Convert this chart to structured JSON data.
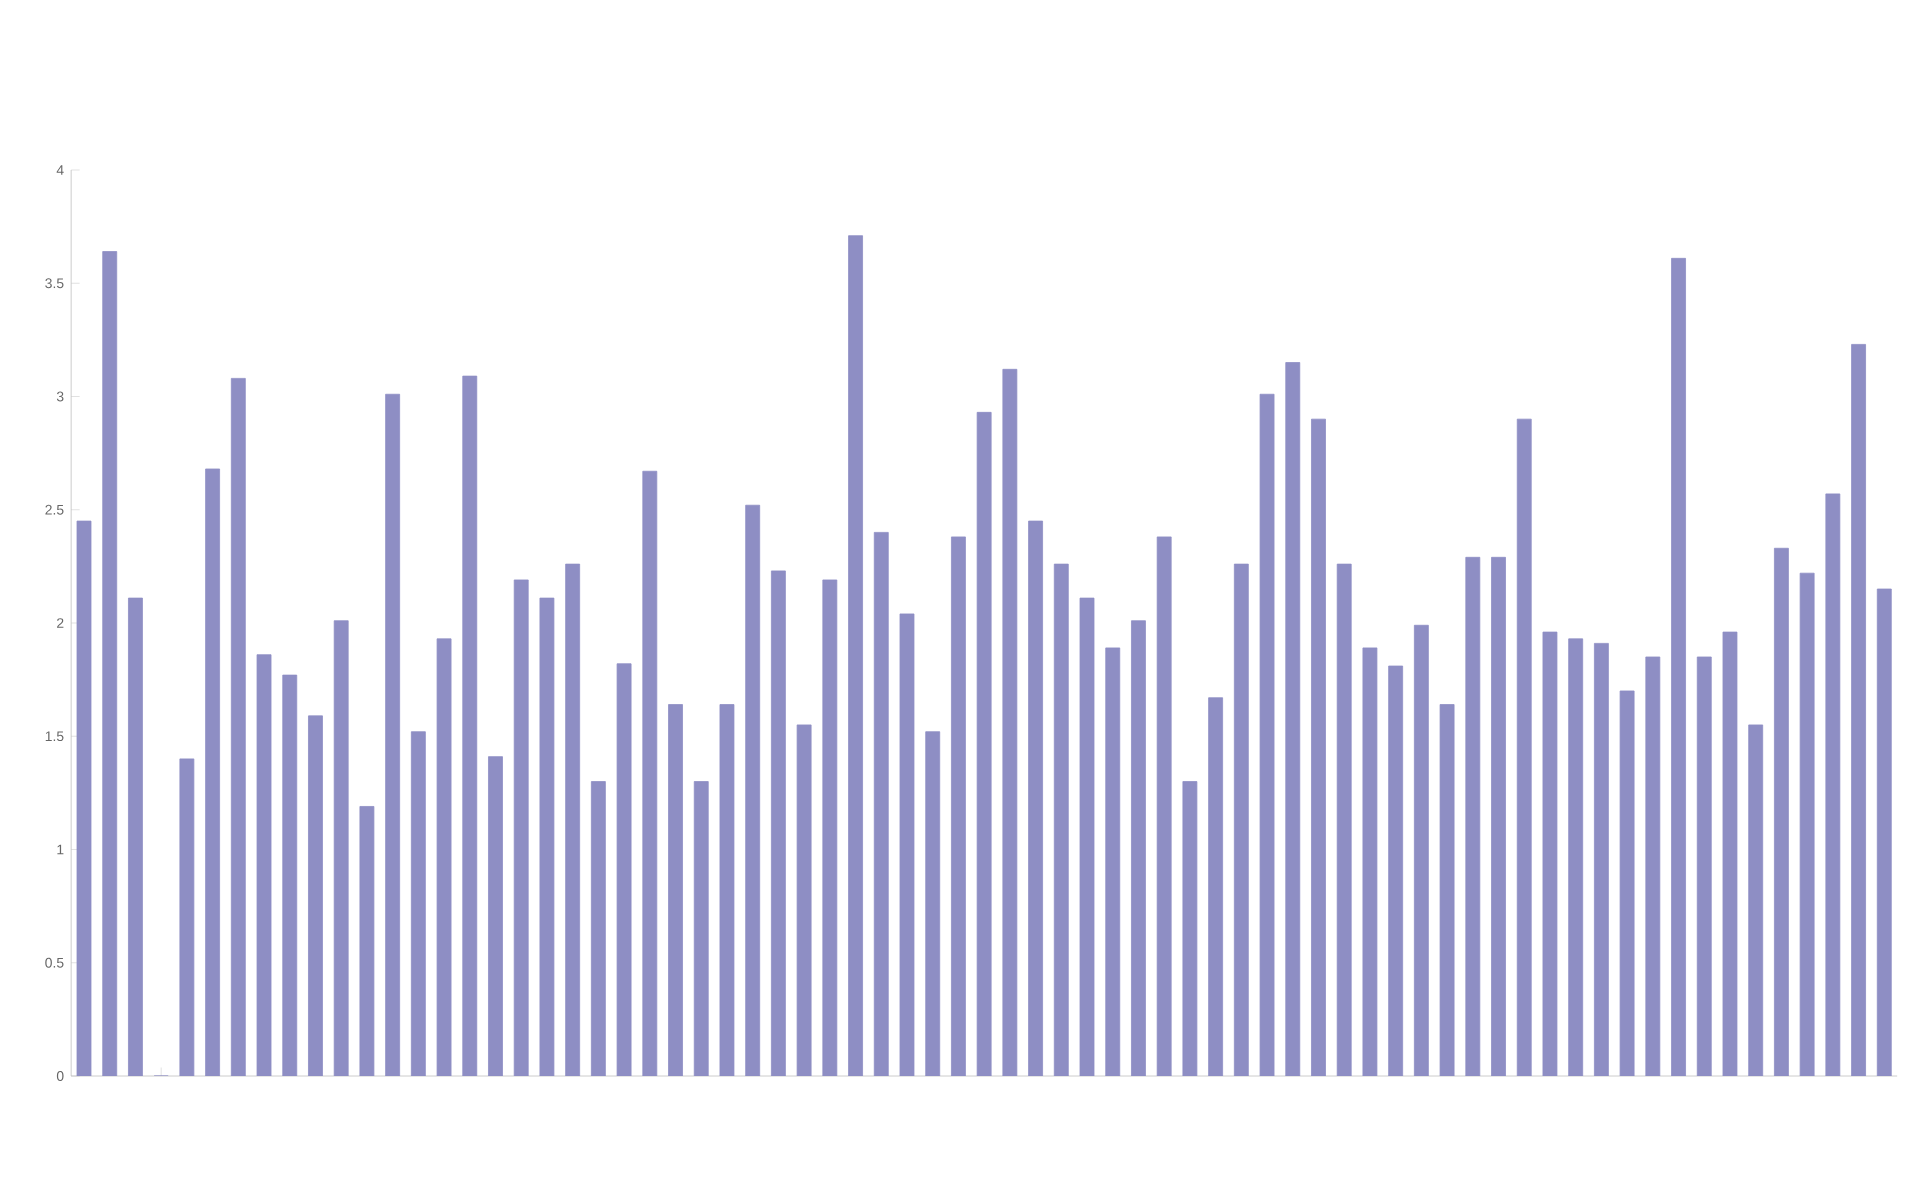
{
  "chart_data": {
    "type": "bar",
    "categories": [
      null,
      null,
      null,
      null,
      null,
      null,
      null,
      null,
      null,
      null,
      null,
      null,
      null,
      null,
      null,
      null,
      null,
      null,
      null,
      null,
      null,
      null,
      null,
      null,
      null,
      null,
      null,
      null,
      null,
      null,
      null,
      null,
      null,
      null,
      null,
      null,
      null,
      null,
      null,
      null,
      null,
      null,
      null,
      null,
      null,
      null,
      null,
      null,
      null,
      null,
      null,
      null,
      null,
      null,
      null,
      null,
      null,
      null,
      null,
      null,
      null,
      null,
      null,
      null,
      null,
      null,
      null,
      null,
      null,
      null,
      null
    ],
    "series": [
      {
        "color": "#8e8ec4",
        "values": [
          2.45,
          3.64,
          2.11,
          0,
          1.4,
          2.68,
          3.08,
          1.86,
          1.77,
          1.59,
          2.01,
          1.19,
          3.01,
          1.52,
          1.93,
          3.09,
          1.41,
          2.19,
          2.11,
          2.26,
          1.3,
          1.82,
          2.67,
          1.64,
          1.3,
          1.64,
          2.52,
          2.23,
          1.55,
          2.19,
          3.71,
          2.4,
          2.04,
          1.52,
          2.38,
          2.93,
          3.12,
          2.45,
          2.26,
          2.11,
          1.89,
          2.01,
          2.38,
          1.3,
          1.67,
          2.26,
          3.01,
          3.15,
          2.9,
          2.26,
          1.89,
          1.81,
          1.99,
          1.64,
          2.29,
          2.29,
          2.9,
          1.96,
          1.93,
          1.91,
          1.7,
          1.85,
          3.61,
          1.85,
          1.96,
          1.55,
          2.33,
          2.22,
          2.57,
          3.23,
          2.15
        ]
      }
    ],
    "ylim": [
      0,
      4
    ],
    "yticks": [
      0,
      0.5,
      1,
      1.5,
      2,
      2.5,
      3,
      3.5,
      4
    ],
    "grid": false,
    "tick_labels": "y"
  }
}
